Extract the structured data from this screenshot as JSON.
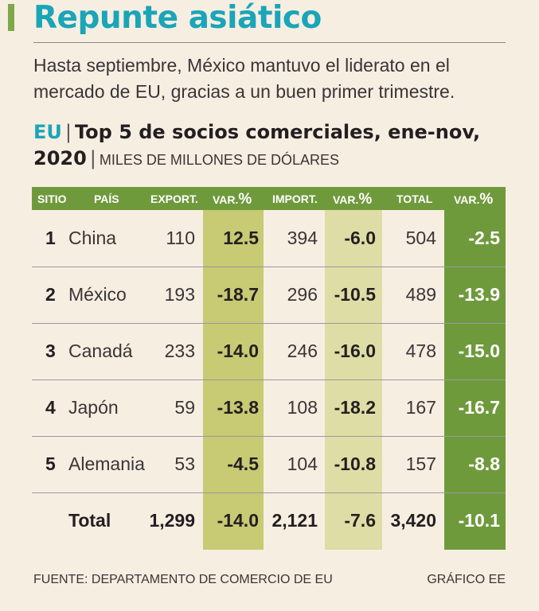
{
  "headline": "Repunte asiático",
  "intro": "Hasta septiembre, México mantuvo el liderato en el mercado de EU, gracias a un buen primer trimestre.",
  "subhead": {
    "region": "EU",
    "title": "Top 5 de socios comerciales, ene-nov, 2020",
    "unit": "MILES DE MILLONES DE DÓLARES"
  },
  "table": {
    "headers": {
      "rank": "SITIO",
      "country": "PAÍS",
      "export": "EXPORT.",
      "export_var": "VAR.",
      "import": "IMPORT.",
      "import_var": "VAR.",
      "total": "TOTAL",
      "total_var": "VAR.",
      "pct_symbol": "%"
    },
    "rows": [
      {
        "rank": "1",
        "country": "China",
        "export": "110",
        "export_var": "12.5",
        "import": "394",
        "import_var": "-6.0",
        "total": "504",
        "total_var": "-2.5"
      },
      {
        "rank": "2",
        "country": "México",
        "export": "193",
        "export_var": "-18.7",
        "import": "296",
        "import_var": "-10.5",
        "total": "489",
        "total_var": "-13.9"
      },
      {
        "rank": "3",
        "country": "Canadá",
        "export": "233",
        "export_var": "-14.0",
        "import": "246",
        "import_var": "-16.0",
        "total": "478",
        "total_var": "-15.0"
      },
      {
        "rank": "4",
        "country": "Japón",
        "export": "59",
        "export_var": "-13.8",
        "import": "108",
        "import_var": "-18.2",
        "total": "167",
        "total_var": "-16.7"
      },
      {
        "rank": "5",
        "country": "Alemania",
        "export": "53",
        "export_var": "-4.5",
        "import": "104",
        "import_var": "-10.8",
        "total": "157",
        "total_var": "-8.8"
      }
    ],
    "total_row": {
      "label": "Total",
      "export": "1,299",
      "export_var": "-14.0",
      "import": "2,121",
      "import_var": "-7.6",
      "total": "3,420",
      "total_var": "-10.1"
    }
  },
  "footer": {
    "source": "FUENTE: DEPARTAMENTO DE COMERCIO DE EU",
    "credit": "GRÁFICO EE"
  },
  "colors": {
    "accent_teal": "#1aa5b8",
    "header_green": "#6f9a3c",
    "shade_light": "#dedda6",
    "shade_mid": "#c8ca74",
    "background": "#f7eee2"
  }
}
